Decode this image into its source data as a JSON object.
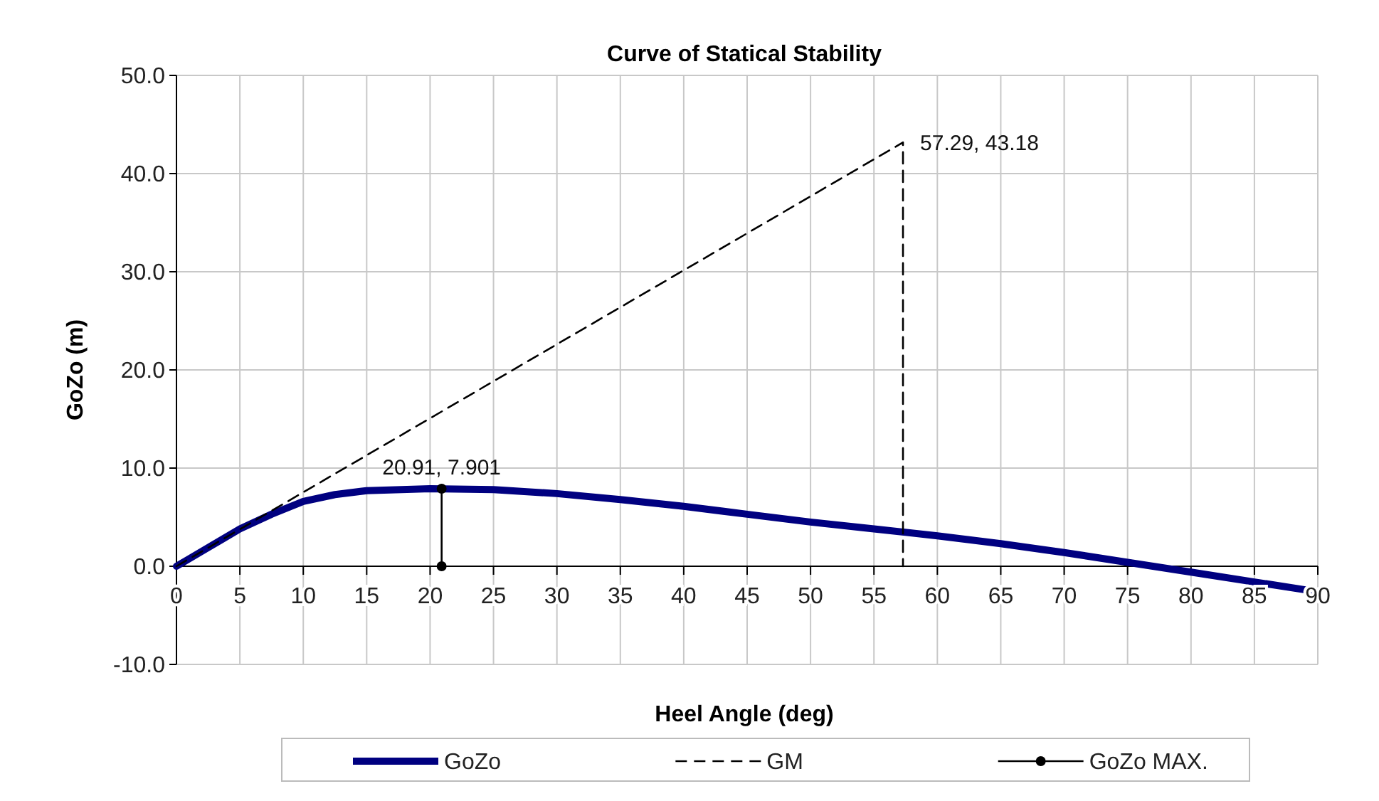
{
  "chart_data": {
    "type": "line",
    "title": "Curve of Statical Stability",
    "xlabel": "Heel Angle (deg)",
    "ylabel": "GoZo (m)",
    "xlim": [
      0,
      90
    ],
    "xticks": [
      0,
      5,
      10,
      15,
      20,
      25,
      30,
      35,
      40,
      45,
      50,
      55,
      60,
      65,
      70,
      75,
      80,
      85,
      90
    ],
    "ylim": [
      -10,
      50
    ],
    "yticks": [
      {
        "value": -10,
        "label": "-10.0"
      },
      {
        "value": 0,
        "label": "0.0"
      },
      {
        "value": 10,
        "label": "10.0"
      },
      {
        "value": 20,
        "label": "20.0"
      },
      {
        "value": 30,
        "label": "30.0"
      },
      {
        "value": 40,
        "label": "40.0"
      },
      {
        "value": 50,
        "label": "50.0"
      }
    ],
    "grid": true,
    "legend": "bottom",
    "series": [
      {
        "name": "GoZo",
        "color": "#000080",
        "line_style": "solid",
        "marker": "none",
        "x": [
          0,
          2.5,
          5,
          7.5,
          10,
          12.5,
          15,
          20,
          25,
          30,
          35,
          40,
          45,
          50,
          55,
          60,
          65,
          70,
          75,
          80,
          85,
          90
        ],
        "values": [
          0,
          1.9,
          3.8,
          5.3,
          6.6,
          7.3,
          7.7,
          7.9,
          7.8,
          7.4,
          6.8,
          6.1,
          5.3,
          4.5,
          3.8,
          3.1,
          2.3,
          1.4,
          0.4,
          -0.6,
          -1.6,
          -2.6
        ]
      },
      {
        "name": "GM",
        "color": "#000000",
        "line_style": "dashed",
        "marker": "none",
        "x": [
          0,
          57.29,
          57.29
        ],
        "values": [
          0,
          43.18,
          0
        ]
      },
      {
        "name": "GoZo MAX.",
        "color": "#000000",
        "line_style": "solid",
        "marker": "circle",
        "x": [
          20.91,
          20.91
        ],
        "values": [
          0,
          7.901
        ]
      }
    ],
    "annotations": [
      {
        "text": "57.29, 43.18",
        "x": 57.29,
        "y": 43.18
      },
      {
        "text": "20.91, 7.901",
        "x": 20.91,
        "y": 7.901
      }
    ]
  }
}
